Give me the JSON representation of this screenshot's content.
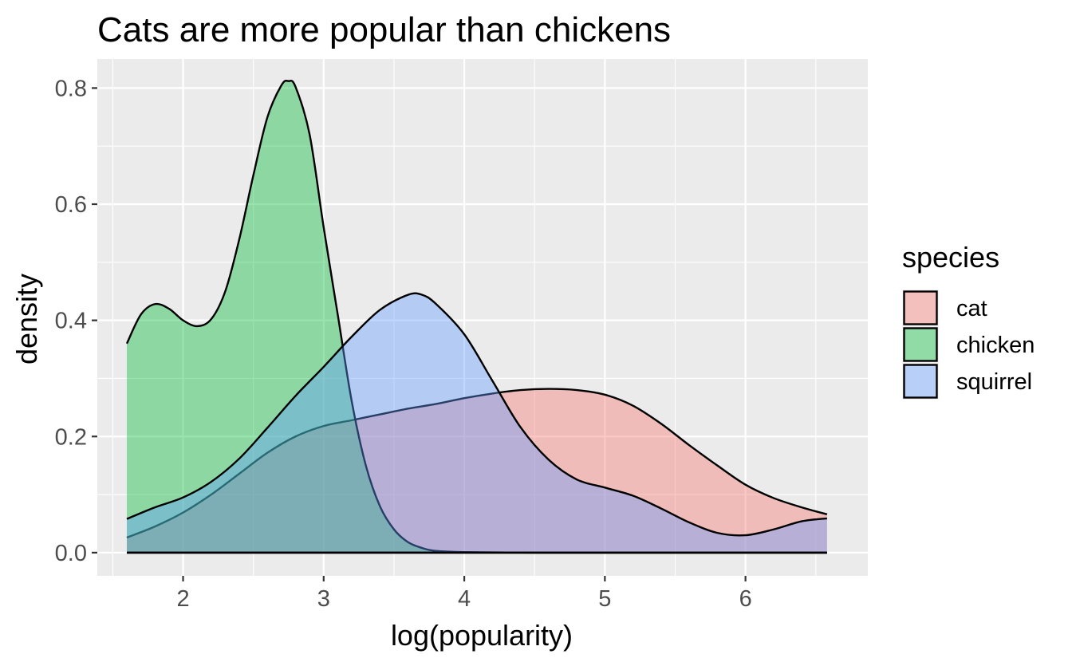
{
  "chart_data": {
    "type": "area",
    "title": "Cats are more popular than chickens",
    "xlabel": "log(popularity)",
    "ylabel": "density",
    "xlim": [
      1.39,
      6.87
    ],
    "ylim": [
      -0.04,
      0.85
    ],
    "x_ticks": [
      2,
      3,
      4,
      5,
      6
    ],
    "x_tick_labels": [
      "2",
      "3",
      "4",
      "5",
      "6"
    ],
    "y_ticks": [
      0.0,
      0.2,
      0.4,
      0.6,
      0.8
    ],
    "y_tick_labels": [
      "0.0",
      "0.2",
      "0.4",
      "0.6",
      "0.8"
    ],
    "grid": true,
    "legend": {
      "title": "species",
      "position": "right"
    },
    "series": [
      {
        "name": "cat",
        "color": "#F8766D",
        "points": [
          [
            1.6,
            0.026
          ],
          [
            1.8,
            0.045
          ],
          [
            2.0,
            0.069
          ],
          [
            2.2,
            0.1
          ],
          [
            2.4,
            0.136
          ],
          [
            2.6,
            0.172
          ],
          [
            2.8,
            0.2
          ],
          [
            3.0,
            0.218
          ],
          [
            3.2,
            0.228
          ],
          [
            3.4,
            0.238
          ],
          [
            3.6,
            0.248
          ],
          [
            3.8,
            0.256
          ],
          [
            4.0,
            0.266
          ],
          [
            4.2,
            0.274
          ],
          [
            4.4,
            0.28
          ],
          [
            4.6,
            0.282
          ],
          [
            4.8,
            0.28
          ],
          [
            5.0,
            0.272
          ],
          [
            5.2,
            0.253
          ],
          [
            5.4,
            0.222
          ],
          [
            5.6,
            0.185
          ],
          [
            5.8,
            0.15
          ],
          [
            6.0,
            0.117
          ],
          [
            6.2,
            0.094
          ],
          [
            6.4,
            0.078
          ],
          [
            6.58,
            0.066
          ]
        ]
      },
      {
        "name": "chicken",
        "color": "#00BA38",
        "points": [
          [
            1.6,
            0.36
          ],
          [
            1.7,
            0.41
          ],
          [
            1.8,
            0.428
          ],
          [
            1.9,
            0.42
          ],
          [
            2.0,
            0.4
          ],
          [
            2.1,
            0.39
          ],
          [
            2.2,
            0.402
          ],
          [
            2.3,
            0.45
          ],
          [
            2.4,
            0.54
          ],
          [
            2.5,
            0.65
          ],
          [
            2.6,
            0.75
          ],
          [
            2.7,
            0.805
          ],
          [
            2.75,
            0.812
          ],
          [
            2.8,
            0.802
          ],
          [
            2.9,
            0.72
          ],
          [
            3.0,
            0.56
          ],
          [
            3.1,
            0.41
          ],
          [
            3.2,
            0.26
          ],
          [
            3.3,
            0.15
          ],
          [
            3.4,
            0.08
          ],
          [
            3.5,
            0.04
          ],
          [
            3.6,
            0.018
          ],
          [
            3.7,
            0.008
          ],
          [
            3.8,
            0.003
          ],
          [
            4.0,
            0.001
          ],
          [
            4.5,
            0.0
          ],
          [
            5.0,
            0.0
          ],
          [
            5.5,
            0.0
          ],
          [
            6.0,
            0.0
          ],
          [
            6.58,
            0.0
          ]
        ]
      },
      {
        "name": "squirrel",
        "color": "#619CFF",
        "points": [
          [
            1.6,
            0.058
          ],
          [
            1.8,
            0.078
          ],
          [
            2.0,
            0.095
          ],
          [
            2.2,
            0.122
          ],
          [
            2.4,
            0.162
          ],
          [
            2.6,
            0.215
          ],
          [
            2.8,
            0.27
          ],
          [
            3.0,
            0.32
          ],
          [
            3.2,
            0.372
          ],
          [
            3.4,
            0.418
          ],
          [
            3.6,
            0.444
          ],
          [
            3.7,
            0.444
          ],
          [
            3.8,
            0.428
          ],
          [
            4.0,
            0.376
          ],
          [
            4.2,
            0.296
          ],
          [
            4.4,
            0.216
          ],
          [
            4.6,
            0.16
          ],
          [
            4.8,
            0.126
          ],
          [
            5.0,
            0.112
          ],
          [
            5.2,
            0.098
          ],
          [
            5.4,
            0.076
          ],
          [
            5.6,
            0.052
          ],
          [
            5.8,
            0.034
          ],
          [
            6.0,
            0.03
          ],
          [
            6.2,
            0.04
          ],
          [
            6.4,
            0.054
          ],
          [
            6.58,
            0.059
          ]
        ]
      }
    ]
  }
}
